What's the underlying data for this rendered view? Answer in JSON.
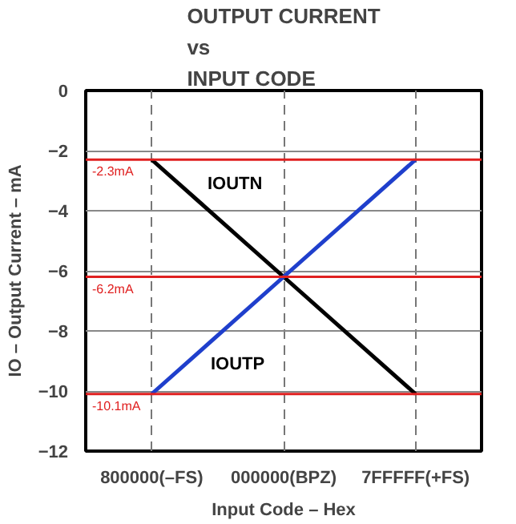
{
  "chart_data": {
    "type": "line",
    "title": "OUTPUT CURRENT\nvs\nINPUT CODE",
    "xlabel": "Input Code – Hex",
    "ylabel": "IO – Output Current – mA",
    "categories": [
      "800000(–FS)",
      "000000(BPZ)",
      "7FFFFF(+FS)"
    ],
    "series": [
      {
        "name": "IOUTN",
        "color": "#000000",
        "values": [
          -2.3,
          -6.2,
          -10.1
        ]
      },
      {
        "name": "IOUTP",
        "color": "#1f3fcc",
        "values": [
          -10.1,
          -6.2,
          -2.3
        ]
      }
    ],
    "ylim": [
      -12,
      0
    ],
    "yticks": [
      -12,
      -10,
      -8,
      -6,
      -4,
      -2,
      0
    ],
    "grid": true,
    "marker": "none",
    "line_style": "solid",
    "ref_lines": [
      {
        "axis": "y",
        "value": -2.3,
        "label": "-2.3mA",
        "color": "#e02020"
      },
      {
        "axis": "y",
        "value": -6.2,
        "label": "-6.2mA",
        "color": "#e02020"
      },
      {
        "axis": "y",
        "value": -10.1,
        "label": "-10.1mA",
        "color": "#e02020"
      }
    ]
  }
}
